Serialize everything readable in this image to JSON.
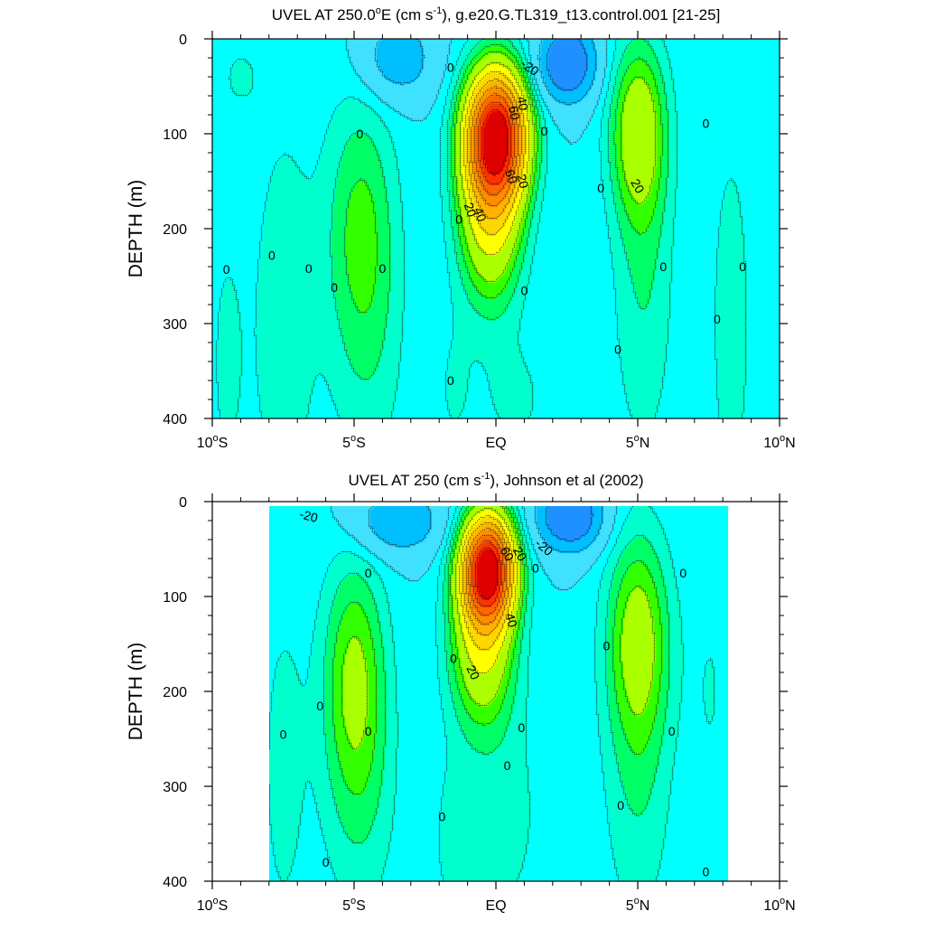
{
  "chart_data": [
    {
      "type": "heatmap",
      "plot": "filled contour",
      "title_parts": [
        "UVEL AT 250.0",
        "o",
        "E (cm s",
        "-1",
        "), g.e20.G.TL319_t13.control.001 [21-25]"
      ],
      "ylabel": "DEPTH (m)",
      "xlim": [
        -10,
        10
      ],
      "ylim": [
        0,
        400
      ],
      "y_inverted": true,
      "y_ticks": [
        0,
        100,
        200,
        300,
        400
      ],
      "x_ticks": [
        {
          "x": -10,
          "num": "10",
          "deg": "o",
          "hem": "S"
        },
        {
          "x": -5,
          "num": "5",
          "deg": "o",
          "hem": "S"
        },
        {
          "x": 0,
          "num": "EQ",
          "deg": "",
          "hem": ""
        },
        {
          "x": 5,
          "num": "5",
          "deg": "o",
          "hem": "N"
        },
        {
          "x": 10,
          "num": "10",
          "deg": "o",
          "hem": "N"
        }
      ],
      "data_extent": {
        "lon": [
          -10,
          10
        ],
        "depth": [
          0,
          400
        ]
      },
      "features": [
        {
          "lon": 0.0,
          "depth": 100,
          "value": 90,
          "sx": 0.75,
          "sd": 48
        },
        {
          "lon": -0.2,
          "depth": 180,
          "value": 35,
          "sx": 0.8,
          "sd": 70
        },
        {
          "lon": 5.0,
          "depth": 95,
          "value": 24,
          "sx": 0.7,
          "sd": 65
        },
        {
          "lon": 5.2,
          "depth": 250,
          "value": 10,
          "sx": 0.8,
          "sd": 140
        },
        {
          "lon": -4.8,
          "depth": 190,
          "value": 14,
          "sx": 0.9,
          "sd": 100
        },
        {
          "lon": -4.5,
          "depth": 330,
          "value": 7,
          "sx": 1.0,
          "sd": 120
        },
        {
          "lon": -7.5,
          "depth": 300,
          "value": 9,
          "sx": 0.8,
          "sd": 160
        },
        {
          "lon": -9.5,
          "depth": 340,
          "value": 6,
          "sx": 0.5,
          "sd": 120
        },
        {
          "lon": 8.3,
          "depth": 300,
          "value": 9,
          "sx": 0.5,
          "sd": 140
        },
        {
          "lon": 2.5,
          "depth": 25,
          "value": -35,
          "sx": 0.7,
          "sd": 28
        },
        {
          "lon": -3.5,
          "depth": 20,
          "value": -18,
          "sx": 0.9,
          "sd": 30
        },
        {
          "lon": -9.0,
          "depth": 40,
          "value": 6,
          "sx": 0.5,
          "sd": 25
        },
        {
          "lon": 0.7,
          "depth": 380,
          "value": 6,
          "sx": 1.0,
          "sd": 50
        },
        {
          "lon": -1.5,
          "depth": 370,
          "value": 5,
          "sx": 0.5,
          "sd": 60
        }
      ],
      "background": -10,
      "contour_levels": [
        -20,
        0,
        20,
        40,
        60,
        80
      ],
      "contour_labels": [
        {
          "text": "-20",
          "lon": 1.2,
          "depth": 30,
          "angle": 35
        },
        {
          "text": "0",
          "lon": -1.6,
          "depth": 30,
          "angle": 0
        },
        {
          "text": "40",
          "lon": 0.95,
          "depth": 68,
          "angle": 80
        },
        {
          "text": "60",
          "lon": 0.65,
          "depth": 78,
          "angle": 80
        },
        {
          "text": "0",
          "lon": 1.7,
          "depth": 97,
          "angle": 0
        },
        {
          "text": "0",
          "lon": -4.8,
          "depth": 100,
          "angle": 0
        },
        {
          "text": "0",
          "lon": 7.4,
          "depth": 89,
          "angle": 0
        },
        {
          "text": "20",
          "lon": 5.0,
          "depth": 155,
          "angle": 60
        },
        {
          "text": "0",
          "lon": 3.7,
          "depth": 157,
          "angle": 0
        },
        {
          "text": "60",
          "lon": 0.55,
          "depth": 145,
          "angle": 70
        },
        {
          "text": "20",
          "lon": 0.95,
          "depth": 150,
          "angle": 75
        },
        {
          "text": "20",
          "lon": -0.9,
          "depth": 180,
          "angle": 70
        },
        {
          "text": "40",
          "lon": -0.55,
          "depth": 185,
          "angle": 70
        },
        {
          "text": "0",
          "lon": -1.3,
          "depth": 190,
          "angle": 0
        },
        {
          "text": "0",
          "lon": -7.9,
          "depth": 228,
          "angle": 0
        },
        {
          "text": "0",
          "lon": -9.5,
          "depth": 243,
          "angle": 0
        },
        {
          "text": "0",
          "lon": -6.6,
          "depth": 242,
          "angle": 0
        },
        {
          "text": "0",
          "lon": -4.0,
          "depth": 242,
          "angle": 0
        },
        {
          "text": "0",
          "lon": -5.7,
          "depth": 262,
          "angle": 0
        },
        {
          "text": "0",
          "lon": 5.9,
          "depth": 240,
          "angle": 0
        },
        {
          "text": "0",
          "lon": 8.7,
          "depth": 240,
          "angle": 0
        },
        {
          "text": "0",
          "lon": 1.0,
          "depth": 265,
          "angle": 0
        },
        {
          "text": "0",
          "lon": 7.8,
          "depth": 295,
          "angle": 0
        },
        {
          "text": "0",
          "lon": 4.3,
          "depth": 327,
          "angle": 0
        },
        {
          "text": "0",
          "lon": -1.6,
          "depth": 360,
          "angle": 0
        }
      ]
    },
    {
      "type": "heatmap",
      "plot": "filled contour",
      "title_parts": [
        "UVEL AT 250 (cm s",
        "-1",
        "), Johnson et al (2002)"
      ],
      "ylabel": "DEPTH (m)",
      "xlim": [
        -10,
        10
      ],
      "ylim": [
        0,
        400
      ],
      "y_inverted": true,
      "y_ticks": [
        0,
        100,
        200,
        300,
        400
      ],
      "x_ticks": [
        {
          "x": -10,
          "num": "10",
          "deg": "o",
          "hem": "S"
        },
        {
          "x": -5,
          "num": "5",
          "deg": "o",
          "hem": "S"
        },
        {
          "x": 0,
          "num": "EQ",
          "deg": "",
          "hem": ""
        },
        {
          "x": 5,
          "num": "5",
          "deg": "o",
          "hem": "N"
        },
        {
          "x": 10,
          "num": "10",
          "deg": "o",
          "hem": "N"
        }
      ],
      "data_extent": {
        "lon": [
          -8,
          8.2
        ],
        "depth": [
          5,
          400
        ]
      },
      "features": [
        {
          "lon": -0.3,
          "depth": 70,
          "value": 95,
          "sx": 0.65,
          "sd": 40
        },
        {
          "lon": -0.5,
          "depth": 150,
          "value": 30,
          "sx": 0.8,
          "sd": 60
        },
        {
          "lon": -5.0,
          "depth": 180,
          "value": 20,
          "sx": 0.8,
          "sd": 90
        },
        {
          "lon": -4.8,
          "depth": 320,
          "value": 8,
          "sx": 1.0,
          "sd": 100
        },
        {
          "lon": 5.0,
          "depth": 140,
          "value": 22,
          "sx": 0.8,
          "sd": 80
        },
        {
          "lon": 5.0,
          "depth": 300,
          "value": 9,
          "sx": 0.9,
          "sd": 120
        },
        {
          "lon": -7.5,
          "depth": 280,
          "value": 7,
          "sx": 0.6,
          "sd": 140
        },
        {
          "lon": 7.6,
          "depth": 200,
          "value": 5,
          "sx": 0.6,
          "sd": 120
        },
        {
          "lon": 2.6,
          "depth": 15,
          "value": -35,
          "sx": 0.8,
          "sd": 25
        },
        {
          "lon": -3.5,
          "depth": 20,
          "value": -20,
          "sx": 1.1,
          "sd": 25
        },
        {
          "lon": 0.2,
          "depth": 330,
          "value": 7,
          "sx": 1.2,
          "sd": 100
        },
        {
          "lon": -1.5,
          "depth": 360,
          "value": 5,
          "sx": 0.6,
          "sd": 70
        }
      ],
      "background": -10,
      "contour_levels": [
        -20,
        0,
        20,
        40,
        60,
        80
      ],
      "contour_labels": [
        {
          "text": "-20",
          "lon": -6.6,
          "depth": 15,
          "angle": 15
        },
        {
          "text": "-20",
          "lon": 1.7,
          "depth": 48,
          "angle": 40
        },
        {
          "text": "60",
          "lon": 0.4,
          "depth": 55,
          "angle": 60
        },
        {
          "text": "20",
          "lon": 0.85,
          "depth": 55,
          "angle": 60
        },
        {
          "text": "0",
          "lon": 1.4,
          "depth": 70,
          "angle": 0
        },
        {
          "text": "0",
          "lon": -4.5,
          "depth": 75,
          "angle": 0
        },
        {
          "text": "0",
          "lon": 6.6,
          "depth": 75,
          "angle": 0
        },
        {
          "text": "40",
          "lon": 0.55,
          "depth": 125,
          "angle": 75
        },
        {
          "text": "0",
          "lon": 3.9,
          "depth": 152,
          "angle": 0
        },
        {
          "text": "0",
          "lon": -1.5,
          "depth": 165,
          "angle": 0
        },
        {
          "text": "20",
          "lon": -0.8,
          "depth": 180,
          "angle": 65
        },
        {
          "text": "0",
          "lon": -6.2,
          "depth": 215,
          "angle": 0
        },
        {
          "text": "0",
          "lon": 0.9,
          "depth": 238,
          "angle": 0
        },
        {
          "text": "0",
          "lon": -7.5,
          "depth": 245,
          "angle": 0
        },
        {
          "text": "0",
          "lon": -4.5,
          "depth": 242,
          "angle": 0
        },
        {
          "text": "0",
          "lon": 6.2,
          "depth": 242,
          "angle": 0
        },
        {
          "text": "0",
          "lon": 0.4,
          "depth": 278,
          "angle": 0
        },
        {
          "text": "0",
          "lon": 4.4,
          "depth": 320,
          "angle": 0
        },
        {
          "text": "0",
          "lon": -1.9,
          "depth": 332,
          "angle": 0
        },
        {
          "text": "0",
          "lon": -6.0,
          "depth": 380,
          "angle": 0
        },
        {
          "text": "0",
          "lon": 7.4,
          "depth": 390,
          "angle": 0
        }
      ]
    }
  ],
  "colors": {
    "level_fills": [
      "#1e90ff",
      "#00bfff",
      "#40e0ff",
      "#00ffff",
      "#00ffcc",
      "#00ff66",
      "#32ff00",
      "#aaff00",
      "#ffff00",
      "#ffd700",
      "#ffb300",
      "#ff8c00",
      "#ff6600",
      "#ff3300",
      "#e00000"
    ],
    "level_bounds": [
      -30,
      -20,
      -10,
      -5,
      0,
      5,
      10,
      20,
      30,
      40,
      50,
      60,
      70,
      80
    ],
    "line": "#000000"
  }
}
